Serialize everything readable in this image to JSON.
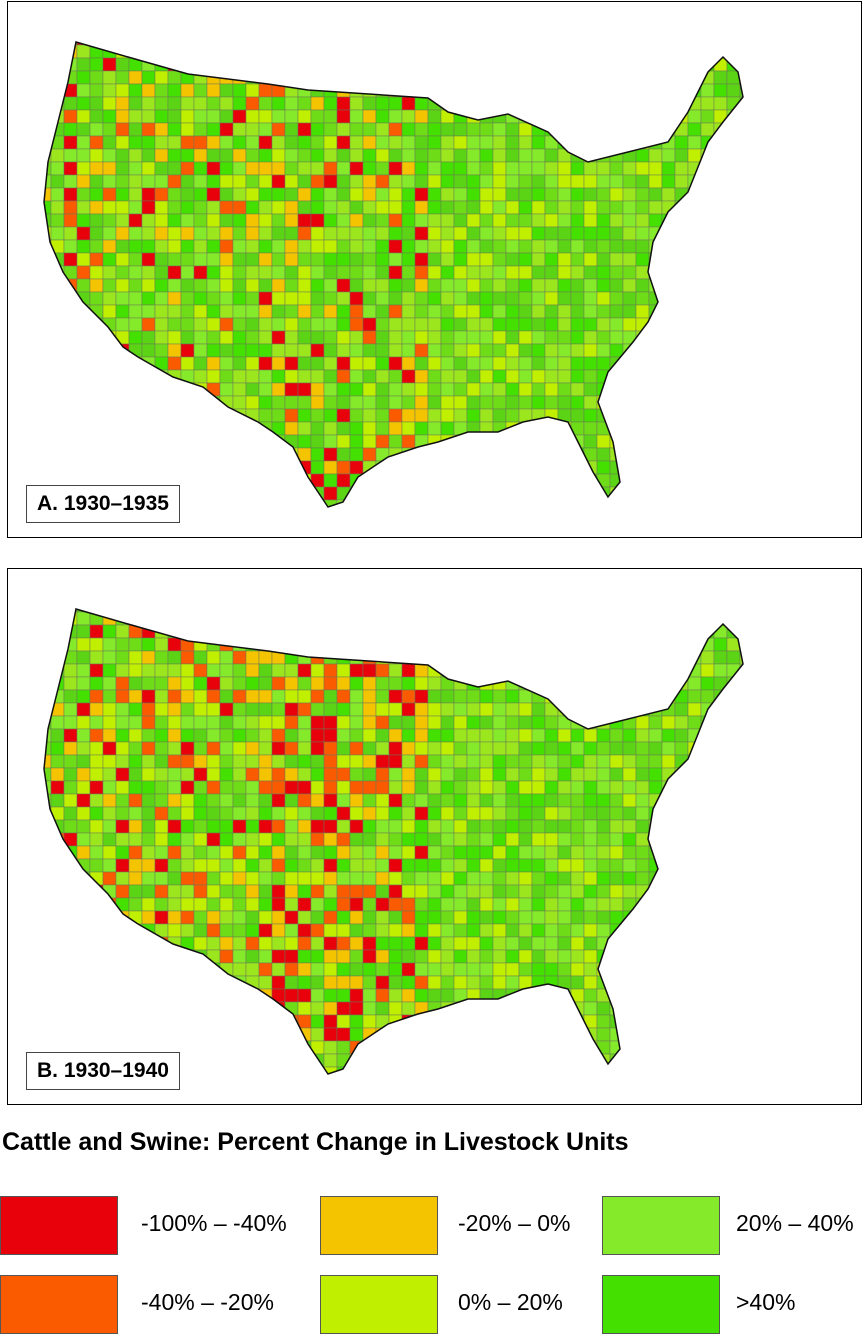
{
  "panels": [
    {
      "id": "a",
      "label": "A. 1930–1935"
    },
    {
      "id": "b",
      "label": "B. 1930–1940"
    }
  ],
  "legend": {
    "title": "Cattle and Swine: Percent Change in Livestock Units",
    "items": [
      {
        "label": "-100% – -40%",
        "color": "#e8000b"
      },
      {
        "label": "-20% – 0%",
        "color": "#f5c400"
      },
      {
        "label": "20% – 40%",
        "color": "#84ea2a"
      },
      {
        "label": "-40% – -20%",
        "color": "#fa5a00"
      },
      {
        "label": "0% – 20%",
        "color": "#c0f000"
      },
      {
        "label": ">40%",
        "color": "#44e000"
      }
    ]
  }
}
